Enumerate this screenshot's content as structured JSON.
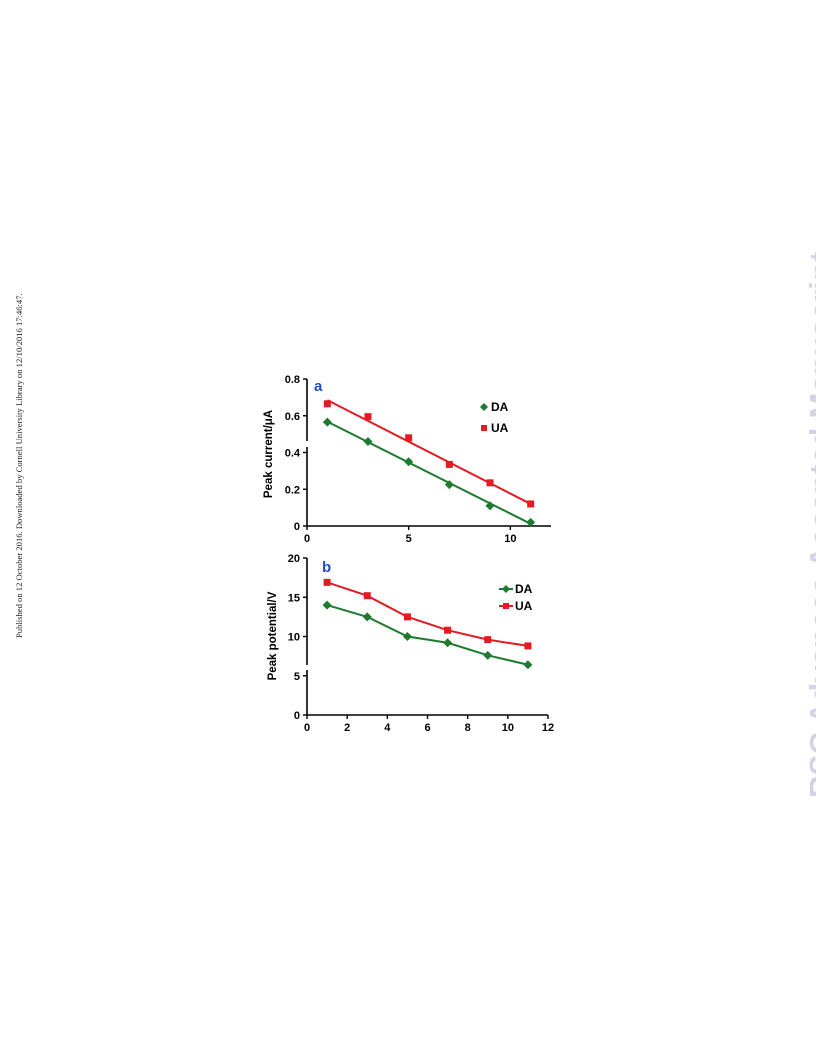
{
  "side_note": "Published on 12 October 2016. Downloaded by Cornell University Library on 12/10/2016 17:46:47.",
  "watermark": "RSC Advances Accepted Manuscript",
  "colors": {
    "da": "#1e7a2e",
    "ua": "#e31b23",
    "panel_letter": "#1f4fc6",
    "watermark": "#d3d3e8",
    "axis": "#000000"
  },
  "chart_data": [
    {
      "type": "scatter",
      "panel_letter": "a",
      "title": "",
      "xlabel": "",
      "ylabel": "Peak current/μA",
      "xlim": [
        0,
        12
      ],
      "ylim": [
        0,
        0.8
      ],
      "xticks": [
        0,
        5,
        10
      ],
      "yticks": [
        0,
        0.2,
        0.4,
        0.6,
        0.8
      ],
      "ytick_labels": [
        "0",
        "0.2",
        "0.4",
        "0.6",
        "0.8"
      ],
      "legend_position": "top-right",
      "fit_lines": true,
      "series": [
        {
          "name": "DA",
          "marker": "diamond",
          "x": [
            1,
            3,
            5,
            7,
            9,
            11
          ],
          "y": [
            0.565,
            0.46,
            0.35,
            0.225,
            0.11,
            0.02
          ],
          "fit": [
            0.568,
            0.012
          ]
        },
        {
          "name": "UA",
          "marker": "square",
          "x": [
            1,
            3,
            5,
            7,
            9,
            11
          ],
          "y": [
            0.665,
            0.595,
            0.48,
            0.335,
            0.235,
            0.12
          ],
          "fit": [
            0.685,
            0.12
          ]
        }
      ]
    },
    {
      "type": "line",
      "panel_letter": "b",
      "title": "",
      "xlabel": "",
      "ylabel": "Peak potential/V",
      "xlim": [
        0,
        12
      ],
      "ylim": [
        0,
        20
      ],
      "xticks": [
        0,
        2,
        4,
        6,
        8,
        10,
        12
      ],
      "yticks": [
        0,
        5,
        10,
        15,
        20
      ],
      "ytick_labels": [
        "0",
        "5",
        "10",
        "15",
        "20"
      ],
      "legend_position": "top-right",
      "series": [
        {
          "name": "DA",
          "marker": "diamond",
          "x": [
            1,
            3,
            5,
            7,
            9,
            11
          ],
          "y": [
            14.0,
            12.5,
            10.0,
            9.2,
            7.6,
            6.4
          ]
        },
        {
          "name": "UA",
          "marker": "square",
          "x": [
            1,
            3,
            5,
            7,
            9,
            11
          ],
          "y": [
            16.9,
            15.2,
            12.5,
            10.8,
            9.6,
            8.8
          ]
        }
      ]
    }
  ]
}
